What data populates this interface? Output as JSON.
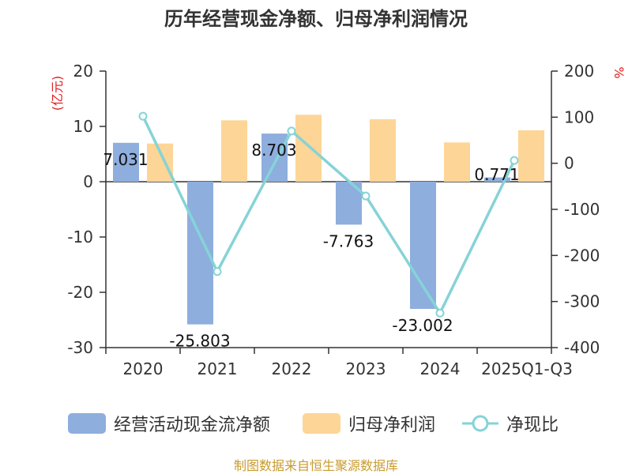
{
  "chart_data": {
    "type": "bar",
    "title": "历年经营现金净额、归母净利润情况",
    "categories": [
      "2020",
      "2021",
      "2022",
      "2023",
      "2024",
      "2025Q1-Q3"
    ],
    "series": [
      {
        "name": "经营活动现金流净额",
        "type": "bar",
        "axis": "left",
        "color": "#8eaedd",
        "values": [
          7.031,
          -25.803,
          8.703,
          -7.763,
          -23.002,
          0.771
        ],
        "labels": [
          "7.031",
          "-25.803",
          "8.703",
          "-7.763",
          "-23.002",
          "0.771"
        ]
      },
      {
        "name": "归母净利润",
        "type": "bar",
        "axis": "left",
        "color": "#fdd596",
        "values": [
          6.9,
          11.1,
          12.1,
          11.3,
          7.1,
          9.3
        ]
      },
      {
        "name": "净现比",
        "type": "line",
        "axis": "right",
        "color": "#86d3d7",
        "values": [
          102,
          -235,
          70,
          -71,
          -325,
          6
        ]
      }
    ],
    "left_axis": {
      "unit": "(亿元)",
      "min": -30,
      "max": 20,
      "ticks": [
        20,
        10,
        0,
        -10,
        -20,
        -30
      ]
    },
    "right_axis": {
      "unit": "%",
      "min": -400,
      "max": 200,
      "ticks": [
        200,
        100,
        0,
        -100,
        -200,
        -300,
        -400
      ]
    },
    "legend_position": "bottom",
    "grid": false
  },
  "source": "制图数据来自恒生聚源数据库"
}
